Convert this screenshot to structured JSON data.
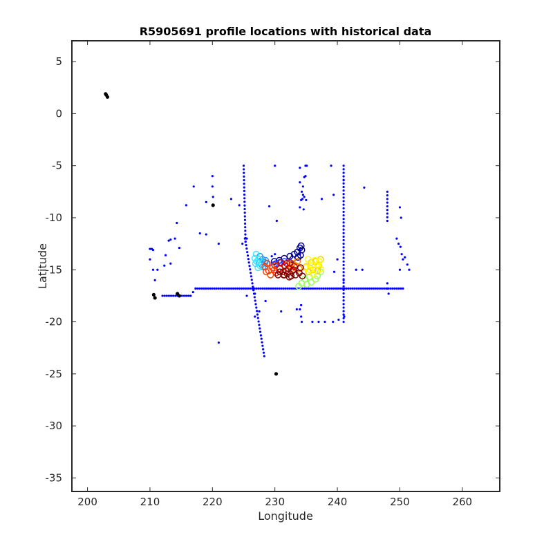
{
  "chart_data": {
    "type": "scatter",
    "title": "R5905691 profile locations with historical data",
    "xlabel": "Longitude",
    "ylabel": "Latitude",
    "xlim": [
      197.5,
      266
    ],
    "ylim": [
      -36.3,
      7
    ],
    "xticks": [
      200,
      210,
      220,
      230,
      240,
      250,
      260
    ],
    "yticks": [
      5,
      0,
      -5,
      -10,
      -15,
      -20,
      -25,
      -30,
      -35
    ],
    "grid": false,
    "legend": "none",
    "colors": {
      "historical_profiles": "#0000ff",
      "other_floats": "#000000",
      "float_track_start": "#00008f",
      "float_track_end": "#7f0000"
    },
    "series": [
      {
        "marker": "dot",
        "color": "#0000ff",
        "segments": [
          {
            "from": [
              225.0,
              -5.0
            ],
            "to": [
              225.3,
              -12.3
            ],
            "n": 22
          },
          {
            "from": [
              225.3,
              -12.3
            ],
            "to": [
              228.3,
              -23.3
            ],
            "n": 34
          },
          {
            "from": [
              241.0,
              -5.0
            ],
            "to": [
              241.0,
              -20.0
            ],
            "n": 45
          },
          {
            "from": [
              212.0,
              -17.5
            ],
            "to": [
              216.5,
              -17.5
            ],
            "n": 14
          },
          {
            "from": [
              216.5,
              -17.5
            ],
            "to": [
              217.3,
              -16.8
            ],
            "n": 3
          },
          {
            "from": [
              217.3,
              -16.8
            ],
            "to": [
              250.5,
              -16.8
            ],
            "n": 100
          },
          {
            "from": [
              248.0,
              -7.5
            ],
            "to": [
              248.0,
              -10.3
            ],
            "n": 9
          },
          {
            "from": [
              234.0,
              -18.8
            ],
            "to": [
              234.2,
              -19.5
            ],
            "n": 2
          }
        ],
        "points": [
          [
            217.0,
            -7.0
          ],
          [
            220.0,
            -6.0
          ],
          [
            220.0,
            -7.0
          ],
          [
            220.1,
            -8.0
          ],
          [
            219.0,
            -8.5
          ],
          [
            223.0,
            -8.2
          ],
          [
            215.8,
            -8.8
          ],
          [
            224.3,
            -8.8
          ],
          [
            229.1,
            -8.9
          ],
          [
            214.3,
            -10.5
          ],
          [
            218.0,
            -11.5
          ],
          [
            219.0,
            -11.6
          ],
          [
            214.0,
            -12.0
          ],
          [
            213.3,
            -12.1
          ],
          [
            213.0,
            -12.2
          ],
          [
            214.7,
            -12.9
          ],
          [
            221.0,
            -12.5
          ],
          [
            210.0,
            -13.0
          ],
          [
            210.3,
            -13.0
          ],
          [
            210.5,
            -13.1
          ],
          [
            212.5,
            -13.6
          ],
          [
            210.0,
            -14.0
          ],
          [
            213.3,
            -14.4
          ],
          [
            212.3,
            -14.6
          ],
          [
            210.5,
            -15.0
          ],
          [
            211.2,
            -15.0
          ],
          [
            210.8,
            -16.0
          ],
          [
            221.0,
            -22.0
          ],
          [
            230.0,
            -5.0
          ],
          [
            234.0,
            -5.2
          ],
          [
            234.9,
            -5.0
          ],
          [
            235.1,
            -5.0
          ],
          [
            234.7,
            -6.1
          ],
          [
            234.9,
            -6.0
          ],
          [
            234.0,
            -6.6
          ],
          [
            239.0,
            -5.0
          ],
          [
            234.5,
            -7.0
          ],
          [
            234.3,
            -7.5
          ],
          [
            234.5,
            -7.8
          ],
          [
            234.7,
            -8.0
          ],
          [
            234.4,
            -8.2
          ],
          [
            235.0,
            -8.3
          ],
          [
            234.2,
            -8.3
          ],
          [
            234.0,
            -9.0
          ],
          [
            234.6,
            -9.2
          ],
          [
            237.5,
            -8.2
          ],
          [
            239.4,
            -7.8
          ],
          [
            241.0,
            -6.4
          ],
          [
            244.3,
            -7.1
          ],
          [
            230.3,
            -10.3
          ],
          [
            234.0,
            -13.0
          ],
          [
            234.0,
            -13.5
          ],
          [
            234.0,
            -14.0
          ],
          [
            230.0,
            -13.5
          ],
          [
            229.5,
            -13.7
          ],
          [
            240.0,
            -14.0
          ],
          [
            243.0,
            -15.0
          ],
          [
            244.0,
            -15.0
          ],
          [
            239.5,
            -15.2
          ],
          [
            225.2,
            -12.0
          ],
          [
            225.5,
            -12.0
          ],
          [
            224.8,
            -12.5
          ],
          [
            226.5,
            -16.8
          ],
          [
            225.5,
            -17.5
          ],
          [
            226.8,
            -17.3
          ],
          [
            228.5,
            -18.0
          ],
          [
            227.5,
            -19.0
          ],
          [
            226.8,
            -19.5
          ],
          [
            231.0,
            -19.0
          ],
          [
            233.5,
            -18.8
          ],
          [
            234.2,
            -18.4
          ],
          [
            234.3,
            -20.0
          ],
          [
            236.0,
            -20.0
          ],
          [
            237.0,
            -20.0
          ],
          [
            238.0,
            -20.0
          ],
          [
            239.3,
            -20.0
          ],
          [
            240.2,
            -19.8
          ],
          [
            241.0,
            -19.3
          ],
          [
            241.1,
            -19.5
          ],
          [
            250.0,
            -9.0
          ],
          [
            250.2,
            -10.0
          ],
          [
            249.5,
            -12.0
          ],
          [
            249.8,
            -12.5
          ],
          [
            250.1,
            -12.8
          ],
          [
            250.3,
            -13.5
          ],
          [
            250.8,
            -13.8
          ],
          [
            250.5,
            -14.0
          ],
          [
            251.2,
            -14.5
          ],
          [
            251.5,
            -15.0
          ],
          [
            250.0,
            -15.0
          ],
          [
            248.0,
            -16.3
          ],
          [
            248.0,
            -16.8
          ],
          [
            248.2,
            -17.3
          ],
          [
            241.0,
            -16.0
          ]
        ]
      },
      {
        "marker": "cluster",
        "color": "#000000",
        "points": [
          [
            203.0,
            1.8
          ],
          [
            203.2,
            1.6
          ],
          [
            202.9,
            1.9
          ],
          [
            220.1,
            -8.8
          ],
          [
            210.6,
            -17.4
          ],
          [
            210.8,
            -17.7
          ],
          [
            214.4,
            -17.3
          ],
          [
            214.7,
            -17.5
          ],
          [
            230.2,
            -25.0
          ]
        ]
      },
      {
        "marker": "circle",
        "color": "#00008f",
        "points": [
          [
            234.0,
            -12.9
          ],
          [
            234.3,
            -13.1
          ],
          [
            233.6,
            -13.3
          ],
          [
            234.1,
            -13.6
          ],
          [
            233.1,
            -13.5
          ],
          [
            232.4,
            -13.7
          ],
          [
            231.5,
            -13.9
          ],
          [
            230.7,
            -14.1
          ],
          [
            229.9,
            -14.2
          ],
          [
            234.2,
            -12.7
          ],
          [
            233.7,
            -13.8
          ],
          [
            232.8,
            -14.0
          ]
        ]
      },
      {
        "marker": "circle",
        "color": "#1f3fff",
        "points": [
          [
            231.5,
            -14.2
          ],
          [
            230.8,
            -14.3
          ],
          [
            229.9,
            -14.5
          ],
          [
            230.2,
            -14.4
          ]
        ]
      },
      {
        "marker": "circle",
        "color": "#1e9cff",
        "points": [
          [
            227.6,
            -13.7
          ],
          [
            228.0,
            -14.0
          ],
          [
            228.4,
            -14.3
          ],
          [
            227.9,
            -14.5
          ],
          [
            228.5,
            -14.1
          ],
          [
            227.5,
            -14.3
          ],
          [
            228.1,
            -14.7
          ],
          [
            228.7,
            -14.4
          ]
        ]
      },
      {
        "marker": "circle",
        "color": "#3ce6ff",
        "points": [
          [
            227.0,
            -13.5
          ],
          [
            227.4,
            -14.0
          ],
          [
            226.9,
            -14.4
          ],
          [
            227.3,
            -14.8
          ],
          [
            226.8,
            -13.9
          ],
          [
            227.6,
            -14.6
          ],
          [
            227.1,
            -14.2
          ]
        ]
      },
      {
        "marker": "circle",
        "color": "#9cff5c",
        "points": [
          [
            235.8,
            -16.2
          ],
          [
            236.5,
            -15.9
          ],
          [
            235.1,
            -16.4
          ],
          [
            234.3,
            -16.3
          ],
          [
            233.8,
            -16.6
          ],
          [
            234.8,
            -15.9
          ],
          [
            236.1,
            -15.4
          ],
          [
            235.5,
            -15.7
          ],
          [
            237.3,
            -15.2
          ],
          [
            236.8,
            -15.6
          ]
        ]
      },
      {
        "marker": "circle",
        "color": "#ffd000",
        "points": [
          [
            236.5,
            -14.2
          ],
          [
            237.0,
            -14.6
          ],
          [
            236.1,
            -15.0
          ],
          [
            235.8,
            -14.3
          ],
          [
            235.4,
            -15.2
          ],
          [
            235.0,
            -14.7
          ],
          [
            236.8,
            -15.1
          ],
          [
            237.3,
            -14.0
          ]
        ]
      },
      {
        "marker": "circle",
        "color": "#ffff00",
        "points": [
          [
            235.3,
            -14.0
          ],
          [
            235.9,
            -14.6
          ],
          [
            236.4,
            -14.1
          ],
          [
            236.9,
            -14.5
          ],
          [
            237.3,
            -14.9
          ],
          [
            236.1,
            -15.4
          ],
          [
            234.8,
            -14.8
          ],
          [
            235.6,
            -15.0
          ],
          [
            237.1,
            -14.2
          ]
        ]
      },
      {
        "marker": "circle",
        "color": "#ff3c00",
        "points": [
          [
            228.4,
            -14.7
          ],
          [
            229.0,
            -15.1
          ],
          [
            229.6,
            -14.8
          ],
          [
            230.2,
            -15.3
          ],
          [
            229.3,
            -15.5
          ],
          [
            228.8,
            -14.4
          ],
          [
            230.0,
            -14.6
          ],
          [
            228.6,
            -15.2
          ],
          [
            229.9,
            -15.0
          ]
        ]
      },
      {
        "marker": "circle",
        "color": "#ff8000",
        "points": [
          [
            232.8,
            -14.4
          ],
          [
            233.3,
            -14.6
          ],
          [
            233.9,
            -14.9
          ],
          [
            232.6,
            -14.9
          ],
          [
            233.6,
            -14.2
          ],
          [
            232.4,
            -14.6
          ]
        ]
      },
      {
        "marker": "circle",
        "color": "#d00000",
        "points": [
          [
            231.0,
            -14.3
          ],
          [
            231.6,
            -14.6
          ],
          [
            232.2,
            -14.9
          ],
          [
            232.8,
            -15.1
          ],
          [
            231.3,
            -15.2
          ],
          [
            231.9,
            -14.4
          ],
          [
            233.1,
            -14.7
          ],
          [
            230.8,
            -14.9
          ],
          [
            232.4,
            -14.3
          ],
          [
            231.5,
            -15.5
          ]
        ]
      },
      {
        "marker": "circle",
        "color": "#7f0000",
        "points": [
          [
            230.8,
            -15.2
          ],
          [
            231.4,
            -15.5
          ],
          [
            232.0,
            -15.4
          ],
          [
            232.6,
            -15.6
          ],
          [
            233.3,
            -15.5
          ],
          [
            233.9,
            -15.3
          ],
          [
            234.4,
            -15.6
          ],
          [
            233.0,
            -15.0
          ],
          [
            231.8,
            -15.1
          ],
          [
            232.3,
            -15.7
          ],
          [
            234.1,
            -14.8
          ],
          [
            230.5,
            -15.5
          ]
        ]
      }
    ]
  }
}
